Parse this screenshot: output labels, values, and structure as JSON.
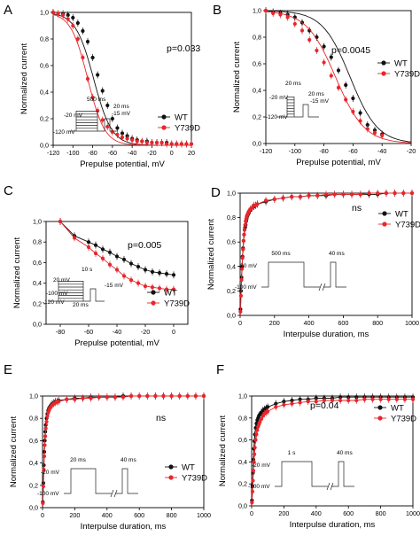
{
  "colors": {
    "wt": "#111111",
    "mut": "#e8262b"
  },
  "chart_data": [
    {
      "panel": "A",
      "type": "line",
      "xlabel": "Prepulse potential, mV",
      "ylabel": "Normalized current",
      "xlim": [
        -120,
        20
      ],
      "ylim": [
        0,
        1.0
      ],
      "xticks": [
        -120,
        -100,
        -80,
        -60,
        -40,
        -20,
        0,
        20
      ],
      "yticks": [
        0.0,
        0.2,
        0.4,
        0.6,
        0.8,
        1.0
      ],
      "ytick_labels": [
        "0,0",
        "0,2",
        "0,4",
        "0,6",
        "0,8",
        "1,0"
      ],
      "grid": false,
      "annotation": "p=0.033",
      "legend": "right",
      "series": [
        {
          "name": "WT",
          "color": "wt",
          "x": [
            -120,
            -115,
            -110,
            -105,
            -100,
            -95,
            -90,
            -85,
            -80,
            -75,
            -70,
            -65,
            -60,
            -55,
            -50,
            -45,
            -40,
            -35,
            -30,
            -25,
            -20,
            -15,
            -10,
            -5,
            0,
            5,
            10,
            15,
            20
          ],
          "y": [
            1.0,
            0.99,
            0.99,
            0.98,
            0.96,
            0.92,
            0.86,
            0.78,
            0.66,
            0.53,
            0.41,
            0.3,
            0.2,
            0.13,
            0.09,
            0.07,
            0.05,
            0.04,
            0.03,
            0.03,
            0.02,
            0.02,
            0.02,
            0.02,
            0.01,
            0.01,
            0.01,
            0.01,
            0.01
          ],
          "fit": {
            "v_half": -79,
            "k": 9.2
          }
        },
        {
          "name": "Y739D",
          "color": "mut",
          "x": [
            -120,
            -115,
            -110,
            -105,
            -100,
            -95,
            -90,
            -85,
            -80,
            -75,
            -70,
            -65,
            -60,
            -55,
            -50,
            -45,
            -40,
            -35,
            -30,
            -25,
            -20,
            -15,
            -10,
            -5,
            0,
            5,
            10,
            15,
            20
          ],
          "y": [
            1.0,
            0.99,
            0.98,
            0.95,
            0.9,
            0.8,
            0.66,
            0.5,
            0.36,
            0.26,
            0.19,
            0.14,
            0.1,
            0.08,
            0.06,
            0.05,
            0.04,
            0.03,
            0.03,
            0.02,
            0.02,
            0.02,
            0.02,
            0.01,
            0.01,
            0.01,
            0.01,
            0.01,
            0.01
          ],
          "fit": {
            "v_half": -85,
            "k": 8.6
          }
        }
      ],
      "protocol": {
        "labels": [
          "500 ms",
          "20 ms",
          "-20 mV",
          "-15 mV",
          "-120 mV"
        ]
      }
    },
    {
      "panel": "B",
      "type": "line",
      "xlabel": "Prepulse potential, mV",
      "ylabel": "Normalized current",
      "xlim": [
        -120,
        -20
      ],
      "ylim": [
        0,
        1.0
      ],
      "xticks": [
        -120,
        -100,
        -80,
        -60,
        -40,
        -20
      ],
      "yticks": [
        0.0,
        0.2,
        0.4,
        0.6,
        0.8,
        1.0
      ],
      "ytick_labels": [
        "0,0",
        "0,2",
        "0,4",
        "0,6",
        "0,8",
        "1,0"
      ],
      "grid": false,
      "annotation": "p=0.0045",
      "legend": "right",
      "series": [
        {
          "name": "WT",
          "color": "wt",
          "x": [
            -120,
            -115,
            -110,
            -105,
            -100,
            -95,
            -90,
            -85,
            -80,
            -75,
            -70,
            -65,
            -60,
            -55,
            -50,
            -45,
            -40
          ],
          "y": [
            1.0,
            0.99,
            0.98,
            0.97,
            0.95,
            0.91,
            0.85,
            0.8,
            0.73,
            0.65,
            0.55,
            0.44,
            0.34,
            0.23,
            0.14,
            0.1,
            0.07
          ],
          "fit": {
            "v_half": -62,
            "k": 9.5
          }
        },
        {
          "name": "Y739D",
          "color": "mut",
          "x": [
            -120,
            -115,
            -110,
            -105,
            -100,
            -95,
            -90,
            -85,
            -80,
            -75,
            -70,
            -65,
            -60,
            -55,
            -50,
            -45,
            -40
          ],
          "y": [
            1.0,
            0.98,
            0.97,
            0.95,
            0.9,
            0.85,
            0.78,
            0.7,
            0.61,
            0.51,
            0.42,
            0.33,
            0.24,
            0.17,
            0.11,
            0.08,
            0.06
          ],
          "fit": {
            "v_half": -72,
            "k": 10
          }
        }
      ],
      "protocol": {
        "labels": [
          "20 ms",
          "-20 mV",
          "20 ms",
          "-15 mV",
          "-120 mV"
        ]
      }
    },
    {
      "panel": "C",
      "type": "line",
      "xlabel": "Prepulse potential, mV",
      "ylabel": "Normalized current",
      "xlim": [
        -90,
        10
      ],
      "ylim": [
        0,
        1.0
      ],
      "xticks": [
        -80,
        -60,
        -40,
        -20,
        0
      ],
      "yticks": [
        0.0,
        0.2,
        0.4,
        0.6,
        0.8,
        1.0
      ],
      "ytick_labels": [
        "0,0",
        "0,2",
        "0,4",
        "0,6",
        "0,8",
        "1,0"
      ],
      "grid": false,
      "annotation": "p=0.005",
      "legend": "bottom-right",
      "series": [
        {
          "name": "WT",
          "color": "wt",
          "x": [
            -80,
            -70,
            -60,
            -55,
            -50,
            -45,
            -40,
            -35,
            -30,
            -25,
            -20,
            -15,
            -10,
            -5,
            0
          ],
          "y": [
            1.0,
            0.86,
            0.8,
            0.77,
            0.73,
            0.7,
            0.66,
            0.63,
            0.59,
            0.56,
            0.53,
            0.51,
            0.5,
            0.49,
            0.48
          ]
        },
        {
          "name": "Y739D",
          "color": "mut",
          "x": [
            -80,
            -70,
            -60,
            -55,
            -50,
            -45,
            -40,
            -35,
            -30,
            -25,
            -20,
            -15,
            -10,
            -5,
            0
          ],
          "y": [
            1.0,
            0.84,
            0.75,
            0.69,
            0.64,
            0.58,
            0.53,
            0.47,
            0.43,
            0.4,
            0.37,
            0.36,
            0.35,
            0.34,
            0.34
          ]
        }
      ],
      "protocol": {
        "labels": [
          "10 s",
          "-15 mV",
          "20 mV",
          "-100 mV",
          "-120 mV",
          "20 ms"
        ]
      }
    },
    {
      "panel": "D",
      "type": "line",
      "xlabel": "Interpulse duration, ms",
      "ylabel": "Normalized current",
      "xlim": [
        0,
        1000
      ],
      "ylim": [
        0,
        1.0
      ],
      "xticks": [
        0,
        200,
        400,
        600,
        800,
        1000
      ],
      "yticks": [
        0.0,
        0.2,
        0.4,
        0.6,
        0.8,
        1.0
      ],
      "ytick_labels": [
        "0,0",
        "0,2",
        "0,4",
        "0,6",
        "0,8",
        "1,0"
      ],
      "grid": false,
      "annotation": "ns",
      "legend": "right",
      "series": [
        {
          "name": "WT",
          "color": "wt",
          "x": [
            2,
            5,
            8,
            11,
            14,
            17,
            20,
            23,
            26,
            29,
            32,
            35,
            38,
            41,
            44,
            47,
            50,
            60,
            70,
            80,
            90,
            100,
            150,
            200,
            250,
            300,
            350,
            400,
            450,
            500,
            550,
            600,
            650,
            700,
            750,
            800,
            850,
            900,
            950,
            1000
          ],
          "y": [
            0.05,
            0.2,
            0.31,
            0.4,
            0.48,
            0.55,
            0.61,
            0.66,
            0.7,
            0.72,
            0.74,
            0.77,
            0.79,
            0.81,
            0.82,
            0.83,
            0.84,
            0.86,
            0.88,
            0.89,
            0.9,
            0.91,
            0.93,
            0.95,
            0.96,
            0.97,
            0.97,
            0.98,
            0.98,
            0.98,
            0.99,
            0.99,
            0.99,
            0.99,
            0.99,
            0.99,
            1.0,
            1.0,
            1.0,
            1.0
          ]
        },
        {
          "name": "Y739D",
          "color": "mut",
          "x": [
            2,
            5,
            8,
            11,
            14,
            17,
            20,
            23,
            26,
            29,
            32,
            35,
            38,
            41,
            44,
            47,
            50,
            60,
            70,
            80,
            90,
            100,
            150,
            200,
            250,
            300,
            350,
            400,
            450,
            500,
            550,
            600,
            650,
            700,
            750,
            800,
            850,
            900,
            950,
            1000
          ],
          "y": [
            0.03,
            0.16,
            0.29,
            0.38,
            0.47,
            0.54,
            0.61,
            0.66,
            0.7,
            0.74,
            0.77,
            0.79,
            0.81,
            0.82,
            0.83,
            0.84,
            0.85,
            0.87,
            0.88,
            0.9,
            0.9,
            0.91,
            0.94,
            0.95,
            0.96,
            0.97,
            0.97,
            0.98,
            0.98,
            0.99,
            0.99,
            0.99,
            0.99,
            0.99,
            1.0,
            1.0,
            1.0,
            1.0,
            1.0,
            1.0
          ]
        }
      ],
      "protocol": {
        "labels": [
          "500 ms",
          "40 ms",
          "-20 mV",
          "-100 mV"
        ]
      }
    },
    {
      "panel": "E",
      "type": "line",
      "xlabel": "Interpulse duration, ms",
      "ylabel": "Normalized current",
      "xlim": [
        0,
        1000
      ],
      "ylim": [
        0,
        1.0
      ],
      "xticks": [
        0,
        200,
        400,
        600,
        800,
        1000
      ],
      "yticks": [
        0.0,
        0.2,
        0.4,
        0.6,
        0.8,
        1.0
      ],
      "ytick_labels": [
        "0,0",
        "0,2",
        "0,4",
        "0,6",
        "0,8",
        "1,0"
      ],
      "grid": false,
      "annotation": "ns",
      "legend": "right",
      "series": [
        {
          "name": "WT",
          "color": "wt",
          "x": [
            2,
            5,
            8,
            11,
            14,
            17,
            20,
            25,
            30,
            35,
            40,
            45,
            50,
            60,
            70,
            80,
            90,
            100,
            150,
            200,
            250,
            300,
            350,
            400,
            450,
            500,
            550,
            600,
            650,
            700,
            750,
            800,
            850,
            900,
            950,
            1000
          ],
          "y": [
            0.05,
            0.22,
            0.38,
            0.5,
            0.6,
            0.68,
            0.74,
            0.8,
            0.84,
            0.87,
            0.89,
            0.9,
            0.91,
            0.93,
            0.94,
            0.95,
            0.95,
            0.96,
            0.97,
            0.98,
            0.98,
            0.99,
            0.99,
            0.99,
            0.99,
            1.0,
            1.0,
            1.0,
            1.0,
            1.0,
            1.0,
            1.0,
            1.0,
            1.0,
            1.0,
            1.0
          ]
        },
        {
          "name": "Y739D",
          "color": "mut",
          "x": [
            2,
            5,
            8,
            11,
            14,
            17,
            20,
            25,
            30,
            35,
            40,
            45,
            50,
            60,
            70,
            80,
            90,
            100,
            150,
            200,
            250,
            300,
            350,
            400,
            450,
            500,
            550,
            600,
            650,
            700,
            750,
            800,
            850,
            900,
            950,
            1000
          ],
          "y": [
            0.04,
            0.19,
            0.34,
            0.46,
            0.56,
            0.64,
            0.71,
            0.77,
            0.82,
            0.85,
            0.87,
            0.89,
            0.9,
            0.92,
            0.93,
            0.94,
            0.95,
            0.95,
            0.97,
            0.97,
            0.98,
            0.98,
            0.99,
            0.99,
            0.99,
            0.99,
            1.0,
            1.0,
            1.0,
            1.0,
            1.0,
            1.0,
            1.0,
            1.0,
            1.0,
            1.0
          ]
        }
      ],
      "protocol": {
        "labels": [
          "20 ms",
          "40 ms",
          "-20 mV",
          "-100 mV"
        ]
      }
    },
    {
      "panel": "F",
      "type": "line",
      "xlabel": "Interpulse duration, ms",
      "ylabel": "Normalized current",
      "xlim": [
        0,
        1000
      ],
      "ylim": [
        0,
        1.0
      ],
      "xticks": [
        0,
        200,
        400,
        600,
        800,
        1000
      ],
      "yticks": [
        0.0,
        0.2,
        0.4,
        0.6,
        0.8,
        1.0
      ],
      "ytick_labels": [
        "0,0",
        "0,2",
        "0,4",
        "0,6",
        "0,8",
        "1,0"
      ],
      "grid": false,
      "annotation": "p=0.04",
      "legend": "right",
      "series": [
        {
          "name": "WT",
          "color": "wt",
          "x": [
            2,
            5,
            8,
            11,
            14,
            17,
            20,
            25,
            30,
            35,
            40,
            45,
            50,
            60,
            70,
            80,
            90,
            100,
            150,
            200,
            250,
            300,
            350,
            400,
            450,
            500,
            550,
            600,
            650,
            700,
            750,
            800,
            850,
            900,
            950,
            1000
          ],
          "y": [
            0.05,
            0.18,
            0.3,
            0.42,
            0.52,
            0.59,
            0.65,
            0.71,
            0.75,
            0.78,
            0.8,
            0.82,
            0.83,
            0.85,
            0.87,
            0.88,
            0.89,
            0.9,
            0.93,
            0.95,
            0.96,
            0.97,
            0.97,
            0.98,
            0.98,
            0.98,
            0.99,
            0.99,
            0.99,
            0.99,
            0.99,
            0.99,
            0.99,
            0.99,
            0.99,
            0.99
          ]
        },
        {
          "name": "Y739D",
          "color": "mut",
          "x": [
            2,
            5,
            8,
            11,
            14,
            17,
            20,
            25,
            30,
            35,
            40,
            45,
            50,
            60,
            70,
            80,
            90,
            100,
            150,
            200,
            250,
            300,
            350,
            400,
            450,
            500,
            550,
            600,
            650,
            700,
            750,
            800,
            850,
            900,
            950,
            1000
          ],
          "y": [
            0.03,
            0.13,
            0.23,
            0.32,
            0.4,
            0.47,
            0.53,
            0.6,
            0.65,
            0.69,
            0.72,
            0.74,
            0.76,
            0.79,
            0.82,
            0.84,
            0.85,
            0.86,
            0.9,
            0.92,
            0.93,
            0.94,
            0.95,
            0.95,
            0.96,
            0.96,
            0.96,
            0.96,
            0.96,
            0.97,
            0.97,
            0.97,
            0.97,
            0.97,
            0.97,
            0.97
          ]
        }
      ],
      "protocol": {
        "labels": [
          "1 s",
          "40 ms",
          "-20 mV",
          "-100 mV"
        ]
      }
    }
  ]
}
